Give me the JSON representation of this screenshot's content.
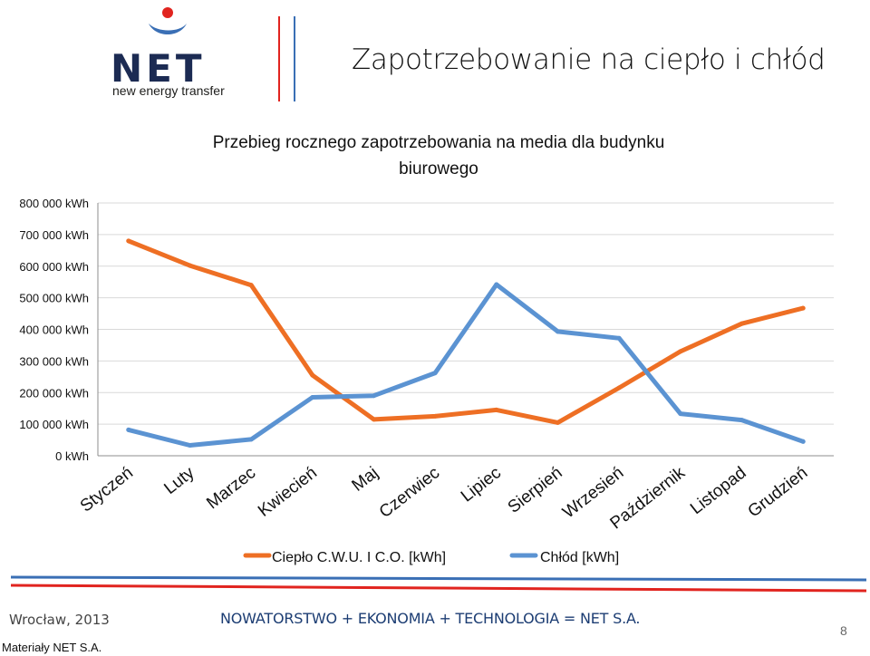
{
  "brand": {
    "name": "NET",
    "subtitle": "new energy transfer",
    "colors": {
      "navy": "#1c2b53",
      "red": "#e1241f",
      "blue": "#3a6fb5"
    }
  },
  "slide": {
    "title": "Zapotrzebowanie na ciepło i chłód"
  },
  "chart_data": {
    "type": "line",
    "title_line1": "Przebieg rocznego zapotrzebowania na media dla budynku",
    "title_line2": "biurowego",
    "categories": [
      "Styczeń",
      "Luty",
      "Marzec",
      "Kwiecień",
      "Maj",
      "Czerwiec",
      "Lipiec",
      "Sierpień",
      "Wrzesień",
      "Październik",
      "Listopad",
      "Grudzień"
    ],
    "ylim": [
      0,
      800000
    ],
    "yticks": [
      0,
      100000,
      200000,
      300000,
      400000,
      500000,
      600000,
      700000,
      800000
    ],
    "ytick_labels": [
      "0 kWh",
      "100 000 kWh",
      "200 000 kWh",
      "300 000 kWh",
      "400 000 kWh",
      "500 000 kWh",
      "600 000 kWh",
      "700 000 kWh",
      "800 000 kWh"
    ],
    "grid": true,
    "legend_position": "bottom",
    "series": [
      {
        "name": "Ciepło C.W.U. I C.O. [kWh]",
        "color": "#ee6f24",
        "values": [
          680000,
          602000,
          540000,
          255000,
          115000,
          125000,
          145000,
          105000,
          215000,
          330000,
          418000,
          467000
        ]
      },
      {
        "name": "Chłód [kWh]",
        "color": "#5b93d2",
        "values": [
          82000,
          33000,
          52000,
          185000,
          190000,
          262000,
          542000,
          393000,
          372000,
          133000,
          113000,
          45000
        ]
      }
    ]
  },
  "footer": {
    "city_year": "Wrocław, 2013",
    "slogan": "NOWATORSTWO + EKONOMIA + TECHNOLOGIA = NET S.A.",
    "page": "8",
    "credit": "Materiały NET S.A."
  }
}
